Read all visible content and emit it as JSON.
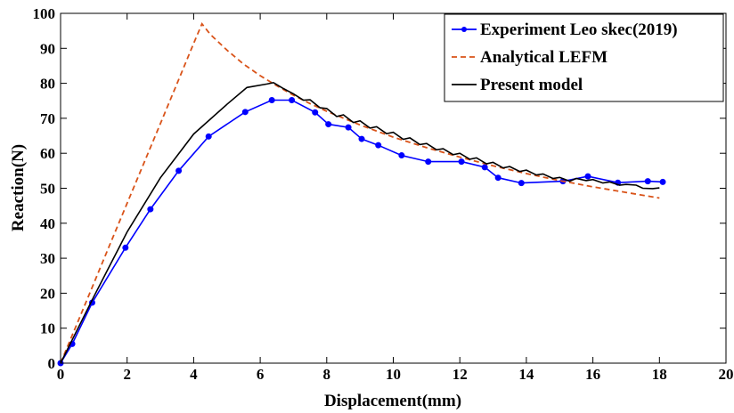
{
  "chart_data": {
    "type": "line",
    "title": "",
    "xlabel": "Displacement(mm)",
    "ylabel": "Reaction(N)",
    "xlim": [
      0,
      20
    ],
    "ylim": [
      0,
      100
    ],
    "xticks": [
      "0",
      "2",
      "4",
      "6",
      "8",
      "10",
      "12",
      "14",
      "16",
      "18",
      "20"
    ],
    "yticks": [
      "0",
      "10",
      "20",
      "30",
      "40",
      "50",
      "60",
      "70",
      "80",
      "90",
      "100"
    ],
    "grid": false,
    "legend_position": "top-right",
    "series": [
      {
        "name": "Experiment Leo skec(2019)",
        "style": "solid-with-markers",
        "color": "#0000ff",
        "x": [
          0,
          0.35,
          0.95,
          1.95,
          2.7,
          3.55,
          4.45,
          5.55,
          6.35,
          6.95,
          7.65,
          8.05,
          8.65,
          9.05,
          9.55,
          10.25,
          11.05,
          12.05,
          12.75,
          13.15,
          13.85,
          15.1,
          15.85,
          16.75,
          17.65,
          18.1
        ],
        "y": [
          0,
          5.5,
          17.3,
          33,
          44,
          55,
          64.8,
          71.8,
          75.2,
          75.2,
          71.7,
          68.3,
          67.4,
          64.1,
          62.3,
          59.4,
          57.6,
          57.6,
          56,
          53,
          51.5,
          52,
          53.4,
          51.6,
          52,
          51.8
        ]
      },
      {
        "name": "Analytical LEFM",
        "style": "dashed",
        "color": "#d95319",
        "x": [
          0,
          0.5,
          1,
          1.5,
          2,
          2.5,
          3,
          3.5,
          4,
          4.25,
          4.5,
          5,
          5.5,
          6,
          6.5,
          7,
          7.5,
          8,
          9,
          10,
          11,
          12,
          13,
          14,
          15,
          16,
          17,
          18
        ],
        "y": [
          0,
          11.4,
          22.8,
          34.3,
          45.7,
          57.1,
          68.5,
          79.9,
          91.4,
          97,
          94,
          89.5,
          85.5,
          82.2,
          79.3,
          76.6,
          74.2,
          72,
          68.1,
          64.6,
          61.6,
          58.9,
          56.4,
          54.2,
          52.2,
          50.4,
          48.8,
          47.2
        ]
      },
      {
        "name": "Present model",
        "style": "solid",
        "color": "#000000",
        "x": [
          0,
          1,
          2,
          3,
          4,
          5,
          5.6,
          6.2,
          6.4,
          6.7,
          7,
          7.3,
          7.5,
          7.8,
          8,
          8.3,
          8.5,
          8.8,
          9,
          9.3,
          9.5,
          9.8,
          10,
          10.3,
          10.5,
          10.8,
          11,
          11.3,
          11.5,
          11.8,
          12,
          12.3,
          12.5,
          12.8,
          13,
          13.3,
          13.5,
          13.8,
          14,
          14.3,
          14.5,
          14.8,
          15,
          15.3,
          15.5,
          15.8,
          16,
          16.3,
          16.5,
          16.8,
          17,
          17.3,
          17.5,
          17.8,
          18
        ],
        "y": [
          0,
          19,
          37.5,
          53,
          65.5,
          74,
          78.8,
          79.8,
          80.2,
          78.5,
          77,
          75.2,
          75.3,
          73,
          72.8,
          70.5,
          71,
          68.8,
          69.3,
          67.2,
          67.6,
          65.6,
          66,
          64,
          64.4,
          62.5,
          62.8,
          61,
          61.3,
          59.6,
          60,
          58.3,
          58.7,
          57,
          57.4,
          55.8,
          56.2,
          54.8,
          55.2,
          53.8,
          54.1,
          52.8,
          53.1,
          52,
          52.8,
          52.2,
          52.5,
          51.5,
          51.8,
          50.9,
          51.1,
          50.9,
          50,
          49.9,
          50.1
        ]
      }
    ]
  }
}
